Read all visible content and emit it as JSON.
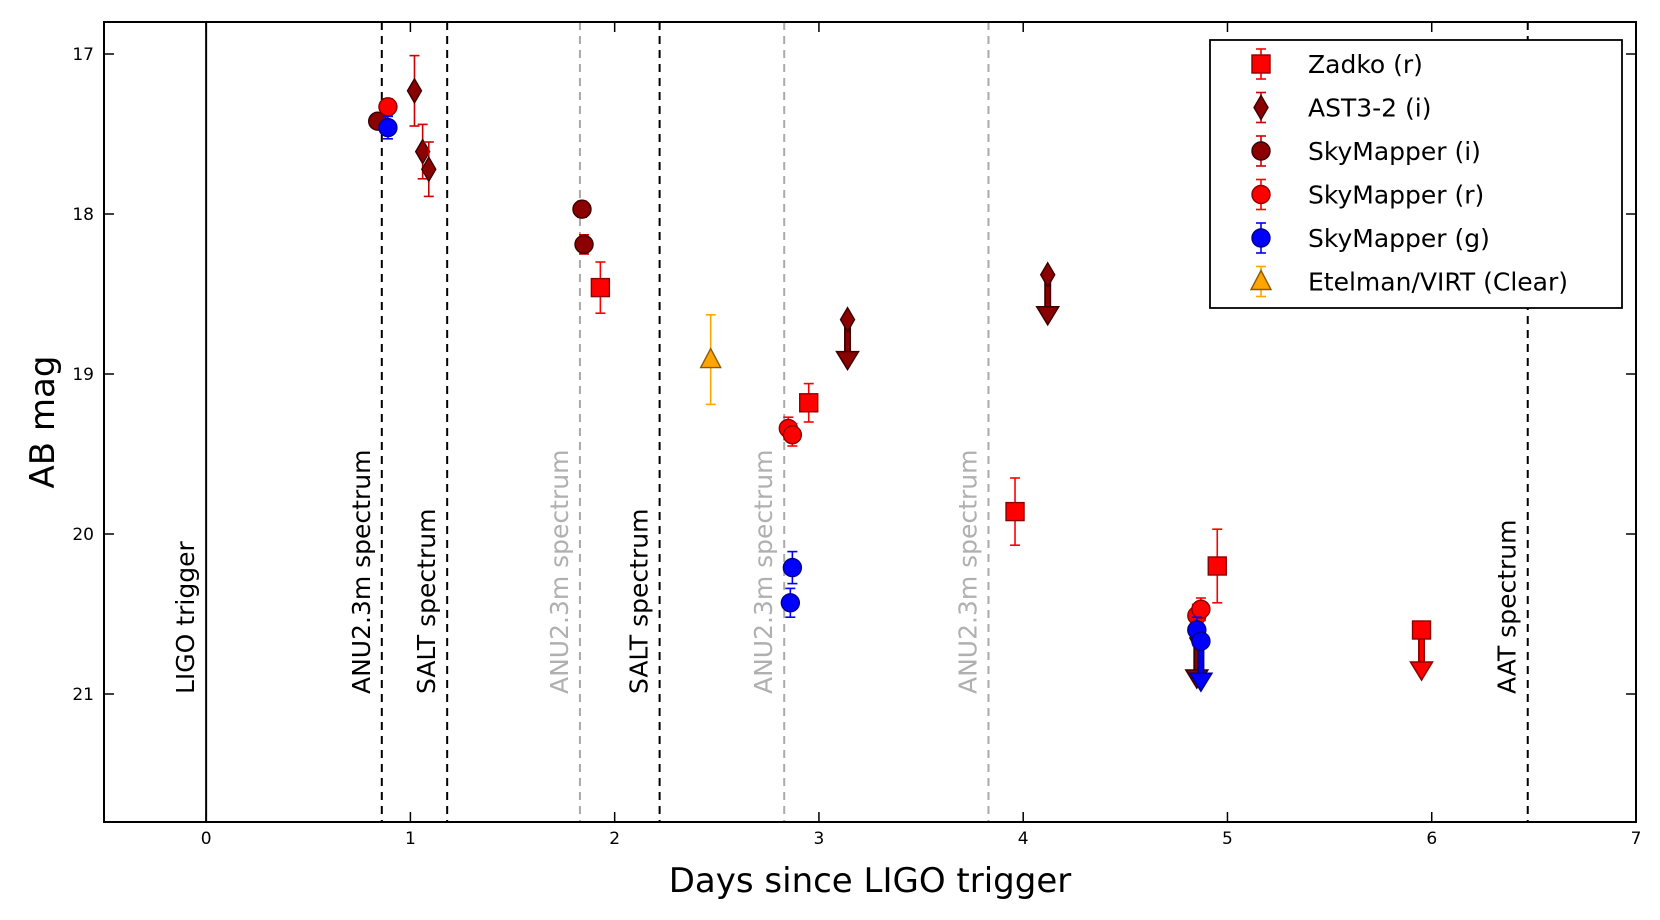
{
  "chart_data": {
    "type": "scatter",
    "xlabel": "Days since LIGO trigger",
    "ylabel": "AB mag",
    "xlim": [
      -0.5,
      7
    ],
    "ylim": [
      21.8,
      16.8
    ],
    "y_inverted": true,
    "x_ticks": [
      0,
      1,
      2,
      3,
      4,
      5,
      6,
      7
    ],
    "y_ticks": [
      17,
      18,
      19,
      20,
      21
    ],
    "legend_position": "top-right",
    "vertical_lines": [
      {
        "x": 0,
        "label": "LIGO trigger",
        "style": "solid",
        "color": "#000000"
      },
      {
        "x": 0.86,
        "label": "ANU2.3m spectrum",
        "style": "dashed",
        "color": "#000000"
      },
      {
        "x": 1.18,
        "label": "SALT spectrum",
        "style": "dashed",
        "color": "#000000"
      },
      {
        "x": 1.83,
        "label": "ANU2.3m spectrum",
        "style": "dashed",
        "color": "#aaaaaa"
      },
      {
        "x": 2.22,
        "label": "SALT spectrum",
        "style": "dashed",
        "color": "#000000"
      },
      {
        "x": 2.83,
        "label": "ANU2.3m spectrum",
        "style": "dashed",
        "color": "#aaaaaa"
      },
      {
        "x": 3.83,
        "label": "ANU2.3m spectrum",
        "style": "dashed",
        "color": "#aaaaaa"
      },
      {
        "x": 6.47,
        "label": "AAT spectrum",
        "style": "dashed",
        "color": "#000000"
      }
    ],
    "series": [
      {
        "name": "Zadko (r)",
        "marker": "square",
        "color": "#ff0000",
        "edge": "#8b0000",
        "errcolor": "#ff0000",
        "points": [
          {
            "x": 1.93,
            "y": 18.46,
            "err": 0.16
          },
          {
            "x": 2.95,
            "y": 19.18,
            "err": 0.12
          },
          {
            "x": 3.96,
            "y": 19.86,
            "err": 0.21
          },
          {
            "x": 4.95,
            "y": 20.2,
            "err": 0.23
          }
        ],
        "limits": [
          {
            "x": 5.95,
            "y": 20.6
          }
        ]
      },
      {
        "name": "AST3-2 (i)",
        "marker": "diamond",
        "color": "#8b0000",
        "edge": "#3a0000",
        "errcolor": "#cc0000",
        "points": [
          {
            "x": 1.02,
            "y": 17.23,
            "err": 0.22
          },
          {
            "x": 1.06,
            "y": 17.61,
            "err": 0.17
          },
          {
            "x": 1.09,
            "y": 17.72,
            "err": 0.17
          }
        ],
        "limits": [
          {
            "x": 3.14,
            "y": 18.66
          },
          {
            "x": 4.12,
            "y": 18.38
          },
          {
            "x": 4.85,
            "y": 20.65
          }
        ]
      },
      {
        "name": "SkyMapper (i)",
        "marker": "circle",
        "color": "#8b0000",
        "edge": "#3a0000",
        "errcolor": "#cc0000",
        "points": [
          {
            "x": 0.84,
            "y": 17.42,
            "err": 0.04
          },
          {
            "x": 1.84,
            "y": 17.97,
            "err": 0.05
          },
          {
            "x": 1.85,
            "y": 18.19,
            "err": 0.06
          }
        ],
        "limits": []
      },
      {
        "name": "SkyMapper (r)",
        "marker": "circle",
        "color": "#ff0000",
        "edge": "#8b0000",
        "errcolor": "#ff0000",
        "points": [
          {
            "x": 0.89,
            "y": 17.33,
            "err": 0.05
          },
          {
            "x": 2.85,
            "y": 19.34,
            "err": 0.07
          },
          {
            "x": 2.87,
            "y": 19.38,
            "err": 0.07
          },
          {
            "x": 4.85,
            "y": 20.51,
            "err": 0.07
          },
          {
            "x": 4.87,
            "y": 20.47,
            "err": 0.07
          }
        ],
        "limits": []
      },
      {
        "name": "SkyMapper (g)",
        "marker": "circle",
        "color": "#0000ff",
        "edge": "#00008b",
        "errcolor": "#0000ff",
        "points": [
          {
            "x": 0.89,
            "y": 17.46,
            "err": 0.07
          },
          {
            "x": 2.87,
            "y": 20.21,
            "err": 0.1
          },
          {
            "x": 2.86,
            "y": 20.43,
            "err": 0.09
          },
          {
            "x": 4.85,
            "y": 20.6,
            "err": 0.08
          }
        ],
        "limits": [
          {
            "x": 4.87,
            "y": 20.67
          }
        ]
      },
      {
        "name": "Etelman/VIRT (Clear)",
        "marker": "triangle",
        "color": "#ffa500",
        "edge": "#8b5a00",
        "errcolor": "#ffa500",
        "points": [
          {
            "x": 2.47,
            "y": 18.91,
            "err": 0.28
          }
        ],
        "limits": []
      }
    ]
  }
}
